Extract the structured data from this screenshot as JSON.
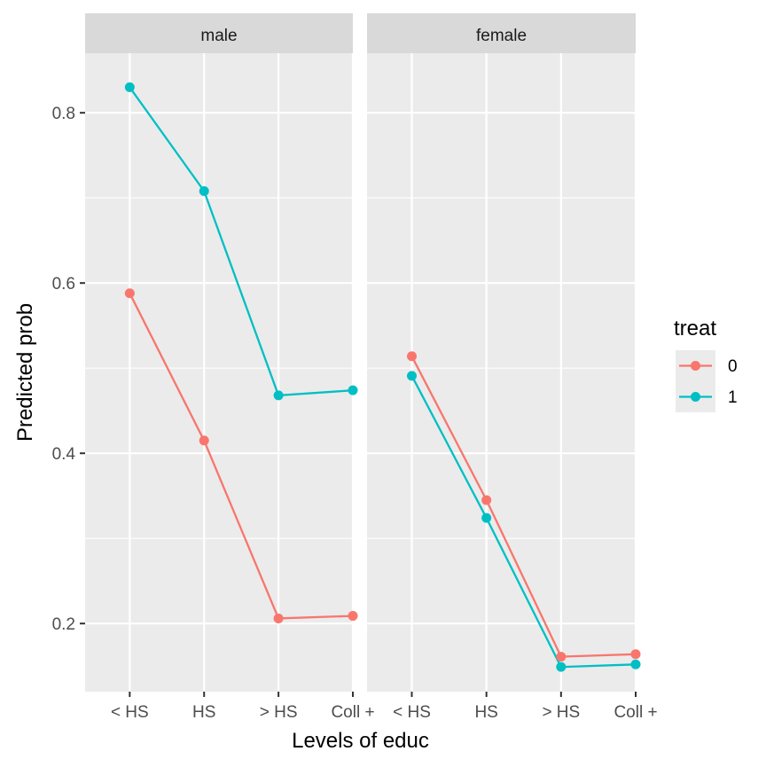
{
  "chart_data": {
    "type": "line",
    "xlabel": "Levels of educ",
    "ylabel": "Predicted prob",
    "categories": [
      "< HS",
      "HS",
      "> HS",
      "Coll +"
    ],
    "ylim": [
      0.12,
      0.87
    ],
    "y_major_ticks": [
      0.2,
      0.4,
      0.6,
      0.8
    ],
    "y_tick_labels": [
      "0.2",
      "0.4",
      "0.6",
      "0.8"
    ],
    "grid": true,
    "legend": {
      "title": "treat",
      "placement": "right",
      "entries": [
        {
          "label": "0",
          "color": "#F8766D"
        },
        {
          "label": "1",
          "color": "#00BFC4"
        }
      ]
    },
    "facets": [
      {
        "label": "male",
        "series": [
          {
            "name": "0",
            "color": "#F8766D",
            "values": [
              0.588,
              0.415,
              0.206,
              0.209
            ]
          },
          {
            "name": "1",
            "color": "#00BFC4",
            "values": [
              0.83,
              0.708,
              0.468,
              0.474
            ]
          }
        ]
      },
      {
        "label": "female",
        "series": [
          {
            "name": "0",
            "color": "#F8766D",
            "values": [
              0.514,
              0.345,
              0.161,
              0.164
            ]
          },
          {
            "name": "1",
            "color": "#00BFC4",
            "values": [
              0.491,
              0.324,
              0.149,
              0.152
            ]
          }
        ]
      }
    ]
  }
}
